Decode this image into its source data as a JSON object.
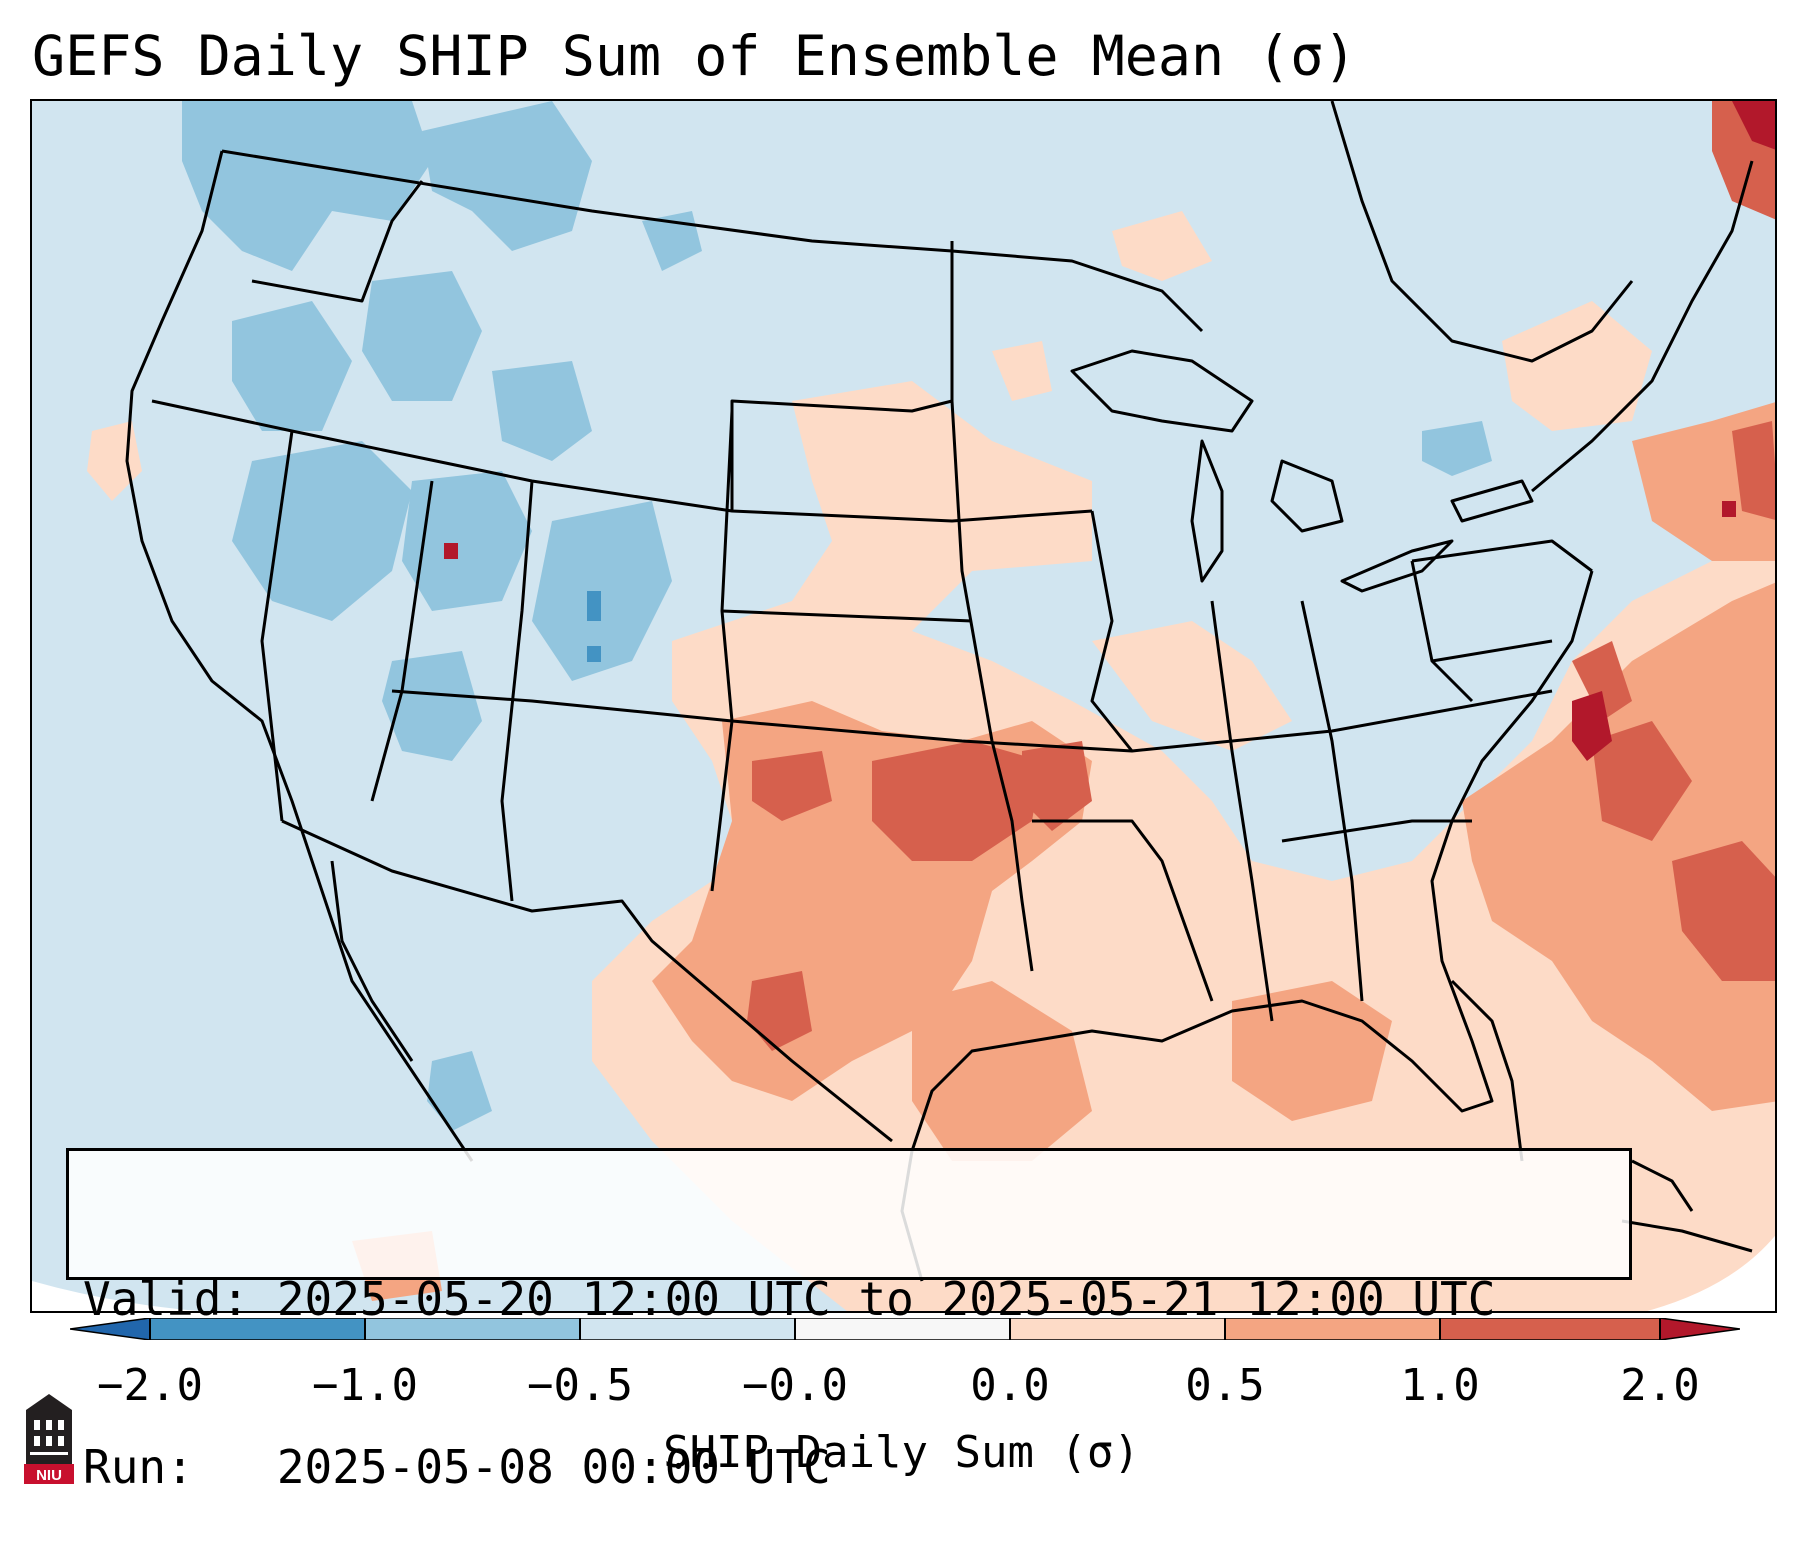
{
  "title": "GEFS Daily SHIP Sum of Ensemble Mean (σ)",
  "info": {
    "valid": "Valid: 2025-05-20 12:00 UTC to 2025-05-21 12:00 UTC",
    "run": "Run:   2025-05-08 00:00 UTC"
  },
  "colorbar": {
    "label": "SHIP Daily Sum (σ)",
    "ticks": [
      "−2.0",
      "−1.0",
      "−0.5",
      "−0.0",
      "0.0",
      "0.5",
      "1.0",
      "2.0"
    ],
    "colors": [
      "#4393c3",
      "#92c5de",
      "#d1e5f0",
      "#f7f7f7",
      "#fddbc7",
      "#f4a582",
      "#d6604d",
      "#b2182b"
    ],
    "extend_low_color": "#2166ac",
    "extend_high_color": "#b2182b"
  },
  "logo": {
    "text": "NIU",
    "color": "#c8102e"
  },
  "map": {
    "background_color": "#d2e4ef",
    "region": "Continental United States, southern Canada, northern Mexico, Gulf of Mexico, western Atlantic"
  }
}
